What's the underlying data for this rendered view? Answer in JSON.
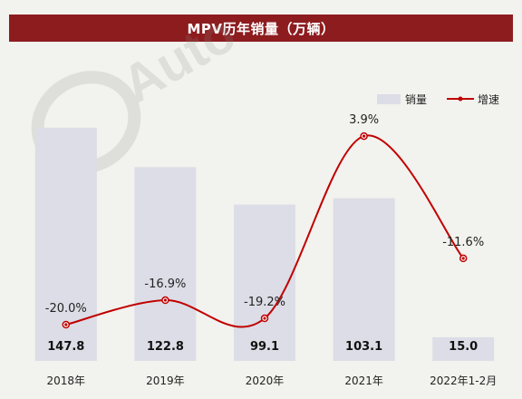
{
  "chart_data": {
    "type": "bar",
    "title": "MPV历年销量（万辆）",
    "categories": [
      "2018年",
      "2019年",
      "2020年",
      "2021年",
      "2022年1-2月"
    ],
    "series": [
      {
        "name": "销量",
        "type": "bar",
        "values": [
          147.8,
          122.8,
          99.1,
          103.1,
          15.0
        ],
        "labels": [
          "147.8",
          "122.8",
          "99.1",
          "103.1",
          "15.0"
        ]
      },
      {
        "name": "增速",
        "type": "line",
        "values": [
          -20.0,
          -16.9,
          -19.2,
          3.9,
          -11.6
        ],
        "labels": [
          "-20.0%",
          "-16.9%",
          "-19.2%",
          "3.9%",
          "-11.6%"
        ]
      }
    ],
    "ylim_bar": [
      0,
      160
    ],
    "ylim_line": [
      -30,
      10
    ],
    "legend_position": "top-right",
    "colors": {
      "bar": "#dcdde6",
      "line": "#c00000",
      "title_bg": "#8d1c1f"
    }
  }
}
